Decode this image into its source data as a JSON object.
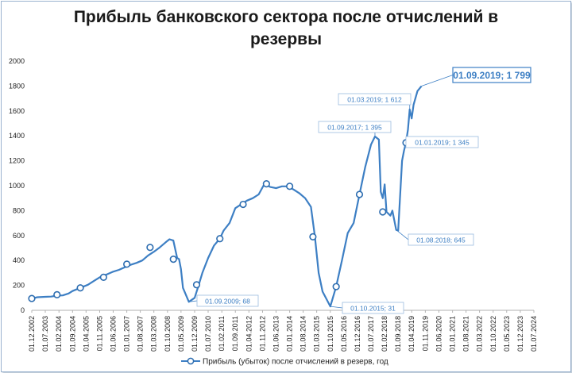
{
  "chart_data": {
    "type": "line",
    "title_line1": "Прибыль банковского сектора после отчислений в",
    "title_line2": "резервы",
    "ylim": [
      0,
      2000
    ],
    "yticks": [
      0,
      200,
      400,
      600,
      800,
      1000,
      1200,
      1400,
      1600,
      1800,
      2000
    ],
    "grid": false,
    "legend_position": "bottom",
    "series": [
      {
        "name": "Прибыль (убыток) после отчислений в резерв, год",
        "color": "#3d7fc4",
        "points": [
          [
            "2002-12-01",
            95
          ],
          [
            "2003-03-01",
            105
          ],
          [
            "2003-07-01",
            108
          ],
          [
            "2003-10-01",
            110
          ],
          [
            "2004-01-01",
            118
          ],
          [
            "2004-04-01",
            120
          ],
          [
            "2004-07-01",
            135
          ],
          [
            "2004-09-01",
            155
          ],
          [
            "2005-01-01",
            180
          ],
          [
            "2005-05-01",
            205
          ],
          [
            "2005-08-01",
            235
          ],
          [
            "2005-11-01",
            265
          ],
          [
            "2006-03-01",
            290
          ],
          [
            "2006-06-01",
            310
          ],
          [
            "2006-09-01",
            325
          ],
          [
            "2006-12-01",
            345
          ],
          [
            "2007-03-01",
            365
          ],
          [
            "2007-06-01",
            380
          ],
          [
            "2007-09-01",
            400
          ],
          [
            "2007-12-01",
            440
          ],
          [
            "2008-03-01",
            470
          ],
          [
            "2008-06-01",
            505
          ],
          [
            "2008-09-01",
            545
          ],
          [
            "2008-11-01",
            570
          ],
          [
            "2009-01-01",
            560
          ],
          [
            "2009-03-01",
            420
          ],
          [
            "2009-04-01",
            410
          ],
          [
            "2009-05-01",
            330
          ],
          [
            "2009-06-01",
            180
          ],
          [
            "2009-09-01",
            68
          ],
          [
            "2009-12-01",
            100
          ],
          [
            "2010-02-01",
            200
          ],
          [
            "2010-04-01",
            300
          ],
          [
            "2010-07-01",
            420
          ],
          [
            "2010-10-01",
            520
          ],
          [
            "2011-01-01",
            575
          ],
          [
            "2011-03-01",
            640
          ],
          [
            "2011-06-01",
            700
          ],
          [
            "2011-09-01",
            820
          ],
          [
            "2011-12-01",
            850
          ],
          [
            "2012-03-01",
            880
          ],
          [
            "2012-06-01",
            900
          ],
          [
            "2012-09-01",
            930
          ],
          [
            "2012-12-01",
            1015
          ],
          [
            "2013-03-01",
            990
          ],
          [
            "2013-06-01",
            980
          ],
          [
            "2013-09-01",
            995
          ],
          [
            "2013-12-01",
            995
          ],
          [
            "2014-03-01",
            970
          ],
          [
            "2014-06-01",
            940
          ],
          [
            "2014-09-01",
            900
          ],
          [
            "2014-12-01",
            830
          ],
          [
            "2015-02-01",
            590
          ],
          [
            "2015-04-01",
            300
          ],
          [
            "2015-06-01",
            150
          ],
          [
            "2015-10-01",
            31
          ],
          [
            "2016-01-01",
            190
          ],
          [
            "2016-04-01",
            400
          ],
          [
            "2016-07-01",
            620
          ],
          [
            "2016-10-01",
            700
          ],
          [
            "2017-01-01",
            930
          ],
          [
            "2017-04-01",
            1150
          ],
          [
            "2017-07-01",
            1330
          ],
          [
            "2017-09-01",
            1395
          ],
          [
            "2017-11-01",
            1370
          ],
          [
            "2017-12-01",
            950
          ],
          [
            "2018-01-01",
            900
          ],
          [
            "2018-02-01",
            1010
          ],
          [
            "2018-03-01",
            790
          ],
          [
            "2018-05-01",
            760
          ],
          [
            "2018-06-01",
            800
          ],
          [
            "2018-08-01",
            645
          ],
          [
            "2018-09-01",
            640
          ],
          [
            "2018-11-01",
            1200
          ],
          [
            "2018-12-01",
            1280
          ],
          [
            "2019-01-01",
            1345
          ],
          [
            "2019-02-01",
            1450
          ],
          [
            "2019-03-01",
            1612
          ],
          [
            "2019-04-01",
            1540
          ],
          [
            "2019-05-01",
            1650
          ],
          [
            "2019-07-01",
            1760
          ],
          [
            "2019-09-01",
            1799
          ]
        ],
        "markers": [
          [
            "2002-12-01",
            95
          ],
          [
            "2004-01-01",
            125
          ],
          [
            "2005-01-01",
            180
          ],
          [
            "2006-01-01",
            265
          ],
          [
            "2007-01-01",
            370
          ],
          [
            "2008-01-01",
            505
          ],
          [
            "2009-01-01",
            410
          ],
          [
            "2010-01-01",
            205
          ],
          [
            "2011-01-01",
            575
          ],
          [
            "2012-01-01",
            850
          ],
          [
            "2013-01-01",
            1015
          ],
          [
            "2014-01-01",
            995
          ],
          [
            "2015-01-01",
            590
          ],
          [
            "2016-01-01",
            190
          ],
          [
            "2017-01-01",
            930
          ],
          [
            "2018-01-01",
            790
          ],
          [
            "2019-01-01",
            1345
          ]
        ]
      }
    ],
    "xticks": [
      "01.12.2002",
      "01.07.2003",
      "01.02.2004",
      "01.09.2004",
      "01.04.2005",
      "01.11.2005",
      "01.06.2006",
      "01.01.2007",
      "01.08.2007",
      "01.03.2008",
      "01.10.2008",
      "01.05.2009",
      "01.12.2009",
      "01.07.2010",
      "01.02.2011",
      "01.09.2011",
      "01.04.2012",
      "01.11.2012",
      "01.06.2013",
      "01.01.2014",
      "01.08.2014",
      "01.03.2015",
      "01.10.2015",
      "01.05.2016",
      "01.12.2016",
      "01.07.2017",
      "01.02.2018",
      "01.09.2018",
      "01.04.2019",
      "01.11.2019",
      "01.06.2020",
      "01.01.2021",
      "01.08.2021",
      "01.03.2022",
      "01.10.2022",
      "01.05.2023",
      "01.12.2023",
      "01.07.2024"
    ],
    "annotations": [
      {
        "text": "01.09.2009; 68",
        "date": "2009-09-01",
        "value": 68
      },
      {
        "text": "01.10.2015; 31",
        "date": "2015-10-01",
        "value": 31
      },
      {
        "text": "01.09.2017; 1 395",
        "date": "2017-09-01",
        "value": 1395
      },
      {
        "text": "01.08.2018; 645",
        "date": "2018-08-01",
        "value": 645
      },
      {
        "text": "01.01.2019; 1 345",
        "date": "2019-01-01",
        "value": 1345
      },
      {
        "text": "01.03.2019; 1 612",
        "date": "2019-03-01",
        "value": 1612
      },
      {
        "text": "01.09.2019; 1 799",
        "date": "2019-09-01",
        "value": 1799
      }
    ]
  }
}
